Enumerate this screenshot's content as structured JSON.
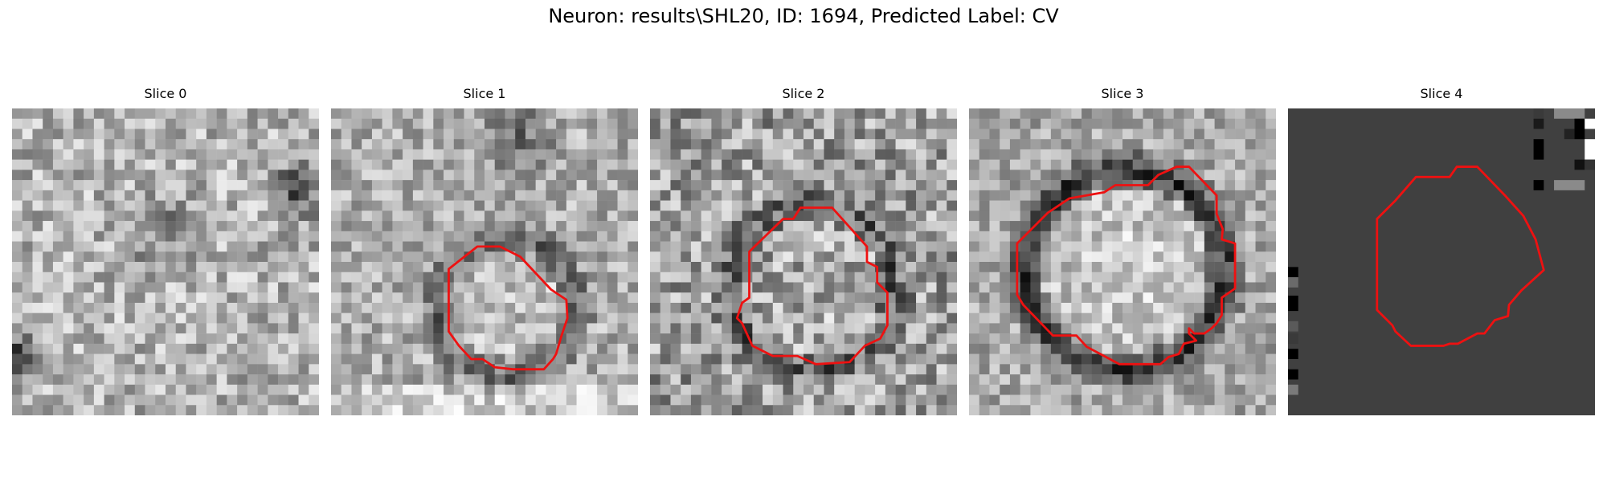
{
  "figure": {
    "title": "Neuron: results\\SHL20, ID: 1694, Predicted Label: CV"
  },
  "colors": {
    "contour": "#ee1111",
    "slice4_background": "#404040"
  },
  "slices": [
    {
      "title": "Slice 0",
      "has_contour": false
    },
    {
      "title": "Slice 1",
      "has_contour": true
    },
    {
      "title": "Slice 2",
      "has_contour": true
    },
    {
      "title": "Slice 3",
      "has_contour": true
    },
    {
      "title": "Slice 4",
      "has_contour": true
    }
  ]
}
